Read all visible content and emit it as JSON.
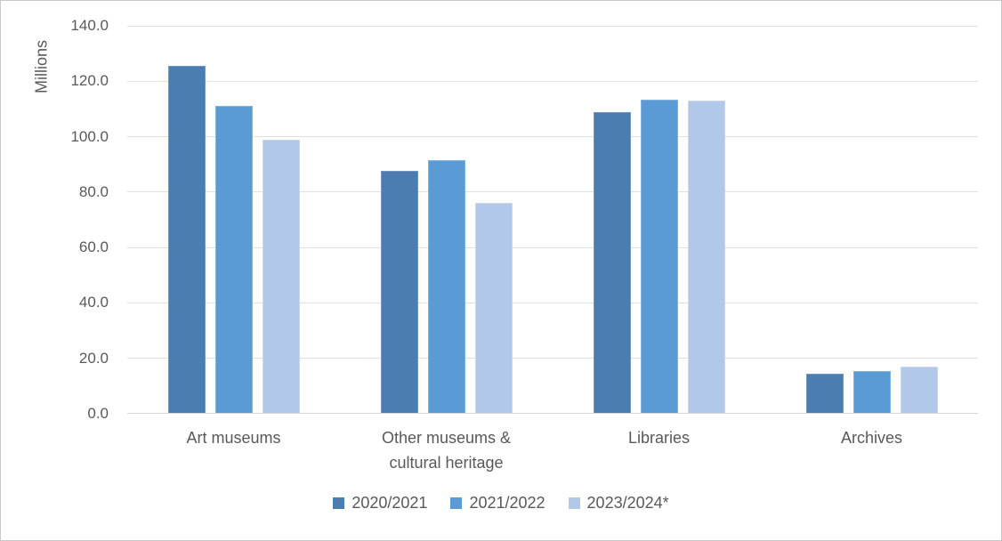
{
  "chart_data": {
    "type": "bar",
    "title": "",
    "xlabel": "",
    "ylabel": "Millions",
    "ylim": [
      0,
      140
    ],
    "grid": true,
    "legend_position": "bottom",
    "y_ticks": [
      {
        "value": 0,
        "label": "0.0"
      },
      {
        "value": 20,
        "label": "20.0"
      },
      {
        "value": 40,
        "label": "40.0"
      },
      {
        "value": 60,
        "label": "60.0"
      },
      {
        "value": 80,
        "label": "80.0"
      },
      {
        "value": 100,
        "label": "100.0"
      },
      {
        "value": 120,
        "label": "120.0"
      },
      {
        "value": 140,
        "label": "140.0"
      }
    ],
    "categories": [
      "Art museums",
      "Other museums & cultural heritage",
      "Libraries",
      "Archives"
    ],
    "series": [
      {
        "name": "2020/2021",
        "color": "#4b7db1",
        "border": "#6f97c2",
        "values": [
          125.3,
          87.3,
          108.5,
          14.0
        ]
      },
      {
        "name": "2021/2022",
        "color": "#5b9bd5",
        "border": "#82b3e0",
        "values": [
          110.8,
          91.2,
          113.0,
          15.2
        ]
      },
      {
        "name": "2023/2024*",
        "color": "#b2c8e8",
        "border": "#c9d9f0",
        "values": [
          98.6,
          75.9,
          112.8,
          16.7
        ]
      }
    ]
  },
  "colors": {
    "text": "#595959",
    "gridline": "#e0e0e0",
    "axis_line": "#d6d6d6",
    "background": "#ffffff",
    "frame_border": "#c8c8c8"
  }
}
